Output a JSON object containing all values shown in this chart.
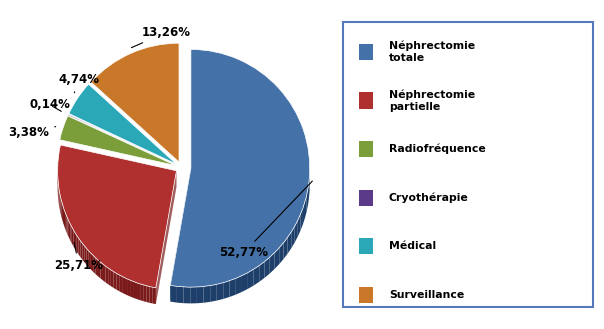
{
  "labels": [
    "Néphrectomie\ntotale",
    "Néphrectomie\npartielle",
    "Radiofréquence",
    "Cryothérapie",
    "Médical",
    "Surveillance"
  ],
  "values": [
    52.77,
    25.71,
    3.38,
    0.14,
    4.74,
    13.26
  ],
  "pct_labels": [
    "52,77%",
    "25,71%",
    "3,38%",
    "0,14%",
    "4,74%",
    "13,26%"
  ],
  "colors": [
    "#4472A8",
    "#B03030",
    "#7B9E3A",
    "#5B3A8A",
    "#2AA8B8",
    "#C87828"
  ],
  "dark_colors": [
    "#1E3F6A",
    "#7A1A1A",
    "#4A6820",
    "#3A1A6A",
    "#1A7888",
    "#8A5010"
  ],
  "explode": [
    0.08,
    0.05,
    0.05,
    0.05,
    0.05,
    0.05
  ],
  "startangle": 90,
  "background_color": "#FFFFFF",
  "legend_labels": [
    "Néphrectomie\ntotale",
    "Néphrectomie\npartielle",
    "Radiofréquence",
    "Cryothérapie",
    "Médical",
    "Surveillance"
  ],
  "figwidth": 6.04,
  "figheight": 3.29,
  "dpi": 100
}
